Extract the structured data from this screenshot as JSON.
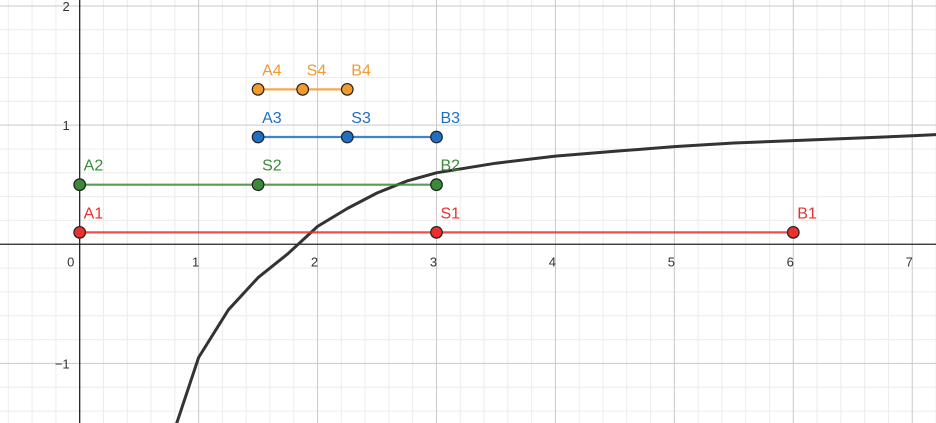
{
  "chart_data": {
    "type": "line",
    "title": "",
    "xlabel": "",
    "ylabel": "",
    "xlim": [
      -0.67,
      7.2
    ],
    "ylim": [
      -1.5,
      2.05
    ],
    "grid": true,
    "x_ticks": [
      "0",
      "1",
      "2",
      "3",
      "4",
      "5",
      "6",
      "7"
    ],
    "y_ticks": [
      "2",
      "1",
      "−1"
    ],
    "curve": {
      "color": "#333333",
      "x": [
        0.8,
        1.0,
        1.25,
        1.5,
        1.75,
        2.0,
        2.25,
        2.5,
        2.75,
        3.0,
        3.5,
        4.0,
        4.5,
        5.0,
        5.5,
        6.0,
        6.5,
        7.0,
        7.2
      ],
      "y": [
        -1.55,
        -0.95,
        -0.55,
        -0.28,
        -0.08,
        0.15,
        0.3,
        0.43,
        0.53,
        0.6,
        0.68,
        0.74,
        0.78,
        0.82,
        0.85,
        0.87,
        0.89,
        0.91,
        0.92
      ]
    },
    "series": [
      {
        "color": "#e8302e",
        "points": [
          {
            "label": "A1",
            "x": 0,
            "y": 0.1
          },
          {
            "label": "S1",
            "x": 3,
            "y": 0.1
          },
          {
            "label": "B1",
            "x": 6,
            "y": 0.1
          }
        ]
      },
      {
        "color": "#3a8a3a",
        "points": [
          {
            "label": "A2",
            "x": 0,
            "y": 0.5
          },
          {
            "label": "S2",
            "x": 1.5,
            "y": 0.5
          },
          {
            "label": "B2",
            "x": 3,
            "y": 0.5
          }
        ]
      },
      {
        "color": "#1f6fc2",
        "points": [
          {
            "label": "A3",
            "x": 1.5,
            "y": 0.9
          },
          {
            "label": "S3",
            "x": 2.25,
            "y": 0.9
          },
          {
            "label": "B3",
            "x": 3,
            "y": 0.9
          }
        ]
      },
      {
        "color": "#f39a2d",
        "points": [
          {
            "label": "A4",
            "x": 1.5,
            "y": 1.3
          },
          {
            "label": "S4",
            "x": 1.875,
            "y": 1.3
          },
          {
            "label": "B4",
            "x": 2.25,
            "y": 1.3
          }
        ]
      }
    ]
  }
}
